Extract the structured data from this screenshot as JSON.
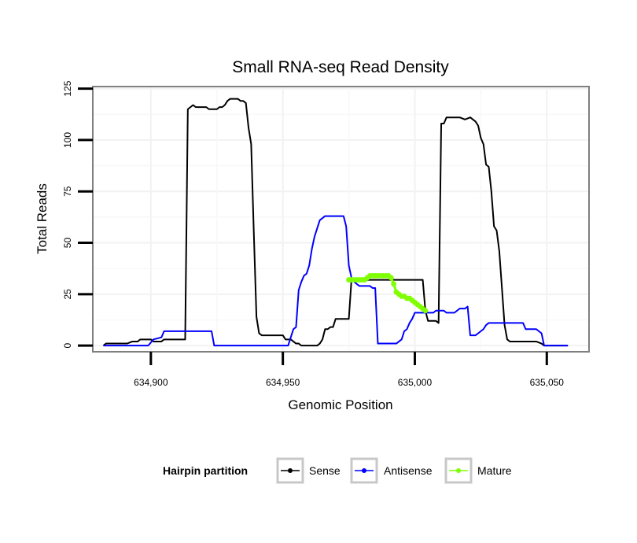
{
  "chart_data": {
    "type": "line",
    "title": "Small RNA-seq Read Density",
    "xlabel": "Genomic Position",
    "ylabel": "Total Reads",
    "xlim": [
      634878,
      635066
    ],
    "ylim": [
      -3,
      126
    ],
    "x_ticks": [
      634900,
      634950,
      635000,
      635050
    ],
    "x_tick_labels": [
      "634,900",
      "634,950",
      "635,000",
      "635,050"
    ],
    "y_ticks": [
      0,
      25,
      50,
      75,
      100,
      125
    ],
    "y_tick_labels": [
      "0",
      "25",
      "50",
      "75",
      "100",
      "125"
    ],
    "grid": true,
    "legend": {
      "title": "Hairpin partition",
      "position": "bottom",
      "entries": [
        "Sense",
        "Antisense",
        "Mature"
      ]
    },
    "series": [
      {
        "name": "Sense",
        "color": "#000000",
        "points": [
          [
            634882,
            0
          ],
          [
            634883,
            1
          ],
          [
            634891,
            1
          ],
          [
            634893,
            2
          ],
          [
            634895,
            2
          ],
          [
            634896,
            3
          ],
          [
            634900,
            3
          ],
          [
            634901,
            2
          ],
          [
            634904,
            2
          ],
          [
            634905,
            3
          ],
          [
            634913,
            3
          ],
          [
            634914,
            115
          ],
          [
            634915,
            116
          ],
          [
            634916,
            117
          ],
          [
            634917,
            116
          ],
          [
            634918,
            116
          ],
          [
            634919,
            116
          ],
          [
            634920,
            116
          ],
          [
            634921,
            116
          ],
          [
            634922,
            115
          ],
          [
            634923,
            115
          ],
          [
            634924,
            115
          ],
          [
            634925,
            115
          ],
          [
            634926,
            116
          ],
          [
            634927,
            116
          ],
          [
            634928,
            117
          ],
          [
            634929,
            119
          ],
          [
            634930,
            120
          ],
          [
            634931,
            120
          ],
          [
            634932,
            120
          ],
          [
            634933,
            120
          ],
          [
            634934,
            119
          ],
          [
            634935,
            119
          ],
          [
            634936,
            118
          ],
          [
            634937,
            106
          ],
          [
            634938,
            98
          ],
          [
            634939,
            55
          ],
          [
            634940,
            14
          ],
          [
            634941,
            6
          ],
          [
            634942,
            5
          ],
          [
            634943,
            5
          ],
          [
            634950,
            5
          ],
          [
            634951,
            3
          ],
          [
            634953,
            3
          ],
          [
            634954,
            2
          ],
          [
            634955,
            1
          ],
          [
            634956,
            1
          ],
          [
            634957,
            0
          ],
          [
            634963,
            0
          ],
          [
            634964,
            1
          ],
          [
            634965,
            3
          ],
          [
            634966,
            8
          ],
          [
            634967,
            8
          ],
          [
            634968,
            9
          ],
          [
            634969,
            9
          ],
          [
            634970,
            13
          ],
          [
            634975,
            13
          ],
          [
            634976,
            32
          ],
          [
            634978,
            32
          ],
          [
            635003,
            32
          ],
          [
            635004,
            17
          ],
          [
            635005,
            12
          ],
          [
            635008,
            12
          ],
          [
            635009,
            11
          ],
          [
            635010,
            108
          ],
          [
            635011,
            108
          ],
          [
            635012,
            111
          ],
          [
            635017,
            111
          ],
          [
            635019,
            110
          ],
          [
            635021,
            111
          ],
          [
            635022,
            110
          ],
          [
            635023,
            109
          ],
          [
            635024,
            107
          ],
          [
            635025,
            101
          ],
          [
            635026,
            98
          ],
          [
            635027,
            88
          ],
          [
            635028,
            87
          ],
          [
            635029,
            75
          ],
          [
            635030,
            58
          ],
          [
            635031,
            56
          ],
          [
            635032,
            46
          ],
          [
            635033,
            28
          ],
          [
            635034,
            10
          ],
          [
            635035,
            3
          ],
          [
            635036,
            2
          ],
          [
            635046,
            2
          ],
          [
            635048,
            1
          ],
          [
            635049,
            0
          ],
          [
            635058,
            0
          ]
        ]
      },
      {
        "name": "Antisense",
        "color": "#0000ff",
        "points": [
          [
            634882,
            0
          ],
          [
            634899,
            0
          ],
          [
            634901,
            3
          ],
          [
            634904,
            4
          ],
          [
            634905,
            7
          ],
          [
            634923,
            7
          ],
          [
            634924,
            0
          ],
          [
            634952,
            0
          ],
          [
            634953,
            4
          ],
          [
            634954,
            8
          ],
          [
            634955,
            9
          ],
          [
            634956,
            27
          ],
          [
            634957,
            31
          ],
          [
            634958,
            34
          ],
          [
            634959,
            35
          ],
          [
            634960,
            39
          ],
          [
            634961,
            47
          ],
          [
            634962,
            53
          ],
          [
            634963,
            57
          ],
          [
            634964,
            61
          ],
          [
            634965,
            62
          ],
          [
            634966,
            63
          ],
          [
            634973,
            63
          ],
          [
            634974,
            58
          ],
          [
            634975,
            39
          ],
          [
            634976,
            33
          ],
          [
            634977,
            31
          ],
          [
            634978,
            30
          ],
          [
            634979,
            29
          ],
          [
            634983,
            29
          ],
          [
            634984,
            28
          ],
          [
            634985,
            28
          ],
          [
            634986,
            1
          ],
          [
            634993,
            1
          ],
          [
            634994,
            2
          ],
          [
            634995,
            3
          ],
          [
            634996,
            7
          ],
          [
            634997,
            8
          ],
          [
            634998,
            11
          ],
          [
            634999,
            13
          ],
          [
            635000,
            16
          ],
          [
            635007,
            16
          ],
          [
            635008,
            17
          ],
          [
            635011,
            17
          ],
          [
            635012,
            16
          ],
          [
            635015,
            16
          ],
          [
            635016,
            17
          ],
          [
            635017,
            18
          ],
          [
            635019,
            18
          ],
          [
            635020,
            19
          ],
          [
            635021,
            5
          ],
          [
            635023,
            5
          ],
          [
            635024,
            6
          ],
          [
            635025,
            7
          ],
          [
            635026,
            8
          ],
          [
            635027,
            10
          ],
          [
            635028,
            11
          ],
          [
            635029,
            11
          ],
          [
            635030,
            11
          ],
          [
            635041,
            11
          ],
          [
            635042,
            8
          ],
          [
            635046,
            8
          ],
          [
            635047,
            7
          ],
          [
            635048,
            6
          ],
          [
            635049,
            0
          ],
          [
            635058,
            0
          ]
        ]
      },
      {
        "name": "Mature",
        "color": "#7fff00",
        "points": [
          [
            634975,
            32
          ],
          [
            634976,
            32
          ],
          [
            634977,
            32
          ],
          [
            634978,
            32
          ],
          [
            634979,
            32
          ],
          [
            634980,
            32
          ],
          [
            634981,
            32
          ],
          [
            634982,
            33
          ],
          [
            634983,
            34
          ],
          [
            634984,
            34
          ],
          [
            634985,
            34
          ],
          [
            634986,
            34
          ],
          [
            634987,
            34
          ],
          [
            634988,
            34
          ],
          [
            634989,
            34
          ],
          [
            634990,
            34
          ],
          [
            634991,
            33
          ],
          [
            634992,
            30
          ],
          [
            634993,
            26
          ],
          [
            634994,
            25
          ],
          [
            634995,
            24
          ],
          [
            634996,
            24
          ],
          [
            634997,
            23
          ],
          [
            634998,
            23
          ],
          [
            634999,
            22
          ],
          [
            635000,
            21
          ],
          [
            635001,
            20
          ],
          [
            635002,
            19
          ],
          [
            635003,
            18
          ],
          [
            635004,
            17
          ]
        ]
      }
    ]
  }
}
